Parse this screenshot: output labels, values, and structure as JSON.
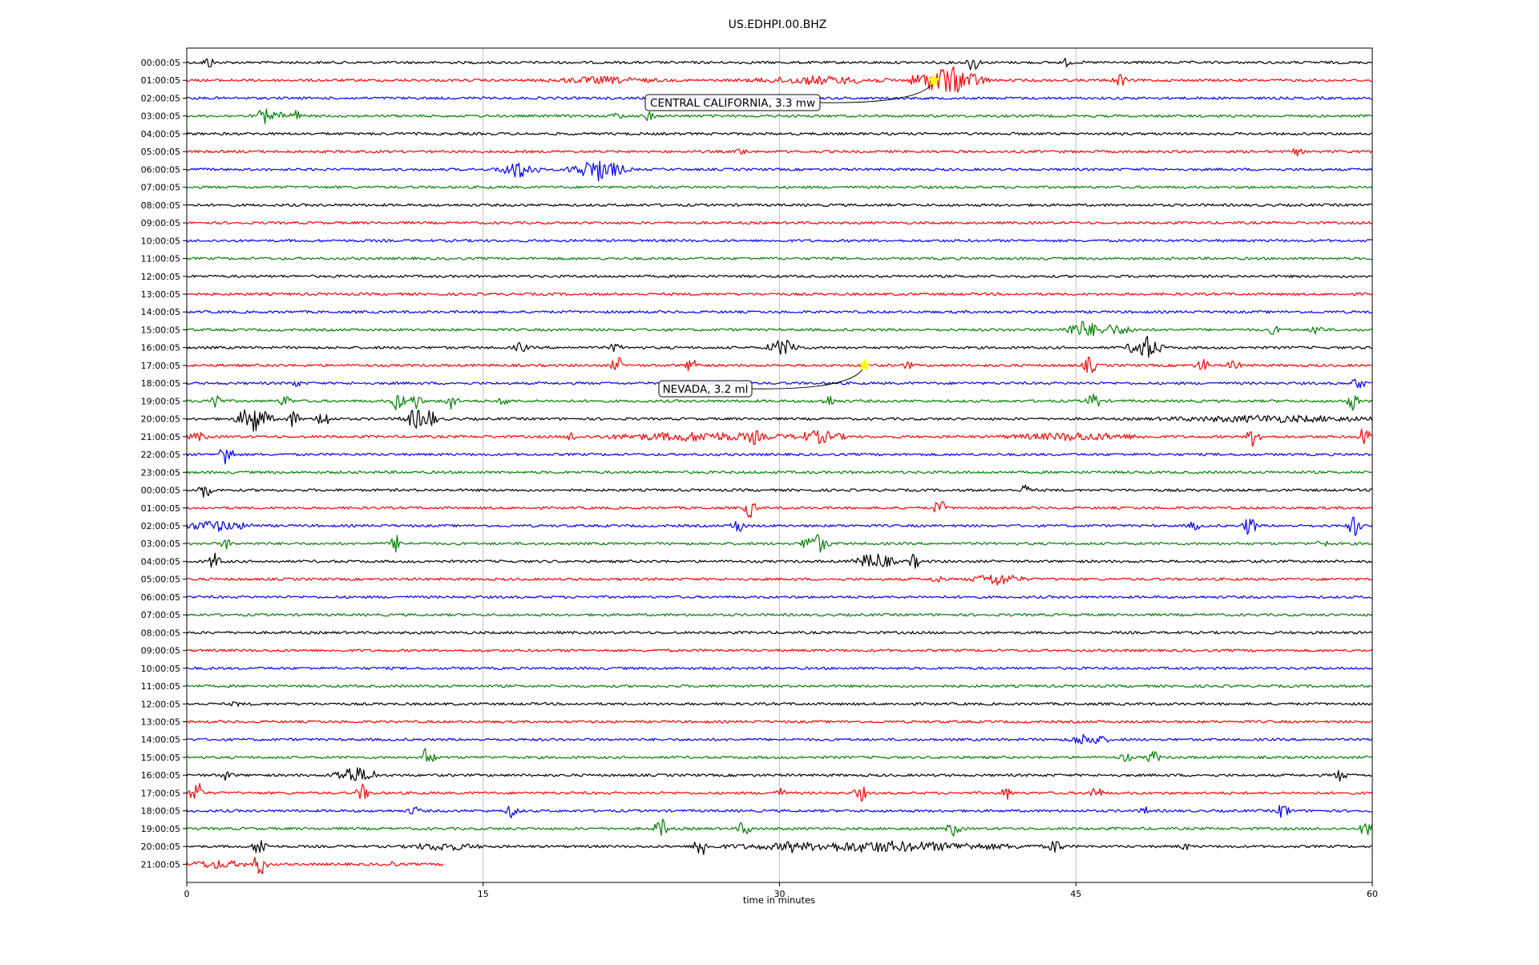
{
  "chart_data": {
    "type": "line",
    "title": "US.EDHPI.00.BHZ",
    "xlabel": "time in minutes",
    "ylabel": "",
    "xlim": [
      0,
      60
    ],
    "x_ticks": [
      0,
      15,
      30,
      45,
      60
    ],
    "grid": "vertical",
    "series_colors": [
      "#000000",
      "#ff0000",
      "#0000ff",
      "#008000"
    ],
    "row_labels": [
      "00:00:05",
      "01:00:05",
      "02:00:05",
      "03:00:05",
      "04:00:05",
      "05:00:05",
      "06:00:05",
      "07:00:05",
      "08:00:05",
      "09:00:05",
      "10:00:05",
      "11:00:05",
      "12:00:05",
      "13:00:05",
      "14:00:05",
      "15:00:05",
      "16:00:05",
      "17:00:05",
      "18:00:05",
      "19:00:05",
      "20:00:05",
      "21:00:05",
      "22:00:05",
      "23:00:05",
      "00:00:05",
      "01:00:05",
      "02:00:05",
      "03:00:05",
      "04:00:05",
      "05:00:05",
      "06:00:05",
      "07:00:05",
      "08:00:05",
      "09:00:05",
      "10:00:05",
      "11:00:05",
      "12:00:05",
      "13:00:05",
      "14:00:05",
      "15:00:05",
      "16:00:05",
      "17:00:05",
      "18:00:05",
      "19:00:05",
      "20:00:05",
      "21:00:05"
    ],
    "last_row_end_minute": 13,
    "events": [
      {
        "label": "CENTRAL CALIFORNIA, 3.3 mw",
        "row": 1,
        "minute": 37.8
      },
      {
        "label": "NEVADA, 3.2 ml",
        "row": 17,
        "minute": 34.3
      }
    ],
    "bursts": [
      {
        "row": 0,
        "minute": 1.1,
        "amp": 0.6
      },
      {
        "row": 0,
        "minute": 39.8,
        "amp": 0.9
      },
      {
        "row": 0,
        "minute": 44.5,
        "amp": 0.4
      },
      {
        "row": 1,
        "minute": 21,
        "amp": 0.35,
        "width": 5
      },
      {
        "row": 1,
        "minute": 32,
        "amp": 0.4,
        "width": 6
      },
      {
        "row": 1,
        "minute": 38.5,
        "amp": 1.3,
        "width": 2.5
      },
      {
        "row": 1,
        "minute": 47.2,
        "amp": 0.7
      },
      {
        "row": 3,
        "minute": 3.9,
        "amp": 0.8
      },
      {
        "row": 3,
        "minute": 4.6,
        "amp": 0.5
      },
      {
        "row": 3,
        "minute": 5.5,
        "amp": 0.6
      },
      {
        "row": 3,
        "minute": 21.8,
        "amp": 0.4
      },
      {
        "row": 3,
        "minute": 23.4,
        "amp": 0.5
      },
      {
        "row": 5,
        "minute": 28.1,
        "amp": 0.4
      },
      {
        "row": 5,
        "minute": 56.2,
        "amp": 0.4
      },
      {
        "row": 6,
        "minute": 16.8,
        "amp": 0.8,
        "width": 1.5
      },
      {
        "row": 6,
        "minute": 20.8,
        "amp": 1.0,
        "width": 2
      },
      {
        "row": 15,
        "minute": 45.4,
        "amp": 0.8,
        "width": 1.5
      },
      {
        "row": 15,
        "minute": 46.8,
        "amp": 0.5,
        "width": 2
      },
      {
        "row": 15,
        "minute": 55,
        "amp": 0.5
      },
      {
        "row": 15,
        "minute": 57.2,
        "amp": 0.6
      },
      {
        "row": 16,
        "minute": 16.9,
        "amp": 0.6
      },
      {
        "row": 16,
        "minute": 21.7,
        "amp": 0.5
      },
      {
        "row": 16,
        "minute": 30.2,
        "amp": 0.8,
        "width": 1.2
      },
      {
        "row": 16,
        "minute": 48.5,
        "amp": 1.1,
        "width": 1.2
      },
      {
        "row": 17,
        "minute": 21.8,
        "amp": 0.8
      },
      {
        "row": 17,
        "minute": 25.6,
        "amp": 0.8
      },
      {
        "row": 17,
        "minute": 36.5,
        "amp": 0.4
      },
      {
        "row": 17,
        "minute": 45.7,
        "amp": 0.9
      },
      {
        "row": 17,
        "minute": 51.4,
        "amp": 0.7
      },
      {
        "row": 17,
        "minute": 53,
        "amp": 0.6
      },
      {
        "row": 18,
        "minute": 5.5,
        "amp": 0.4
      },
      {
        "row": 18,
        "minute": 59.3,
        "amp": 0.7
      },
      {
        "row": 19,
        "minute": 1.4,
        "amp": 1.0
      },
      {
        "row": 19,
        "minute": 5,
        "amp": 0.6
      },
      {
        "row": 19,
        "minute": 10.7,
        "amp": 1.0
      },
      {
        "row": 19,
        "minute": 11.6,
        "amp": 0.8
      },
      {
        "row": 19,
        "minute": 13.4,
        "amp": 0.8
      },
      {
        "row": 19,
        "minute": 16.1,
        "amp": 0.5
      },
      {
        "row": 19,
        "minute": 32.5,
        "amp": 0.6
      },
      {
        "row": 19,
        "minute": 45.9,
        "amp": 0.9
      },
      {
        "row": 19,
        "minute": 59,
        "amp": 0.8
      },
      {
        "row": 20,
        "minute": 3.4,
        "amp": 1.3,
        "width": 1.2
      },
      {
        "row": 20,
        "minute": 5.4,
        "amp": 0.8
      },
      {
        "row": 20,
        "minute": 6.9,
        "amp": 1.0
      },
      {
        "row": 20,
        "minute": 11.6,
        "amp": 0.9,
        "width": 1
      },
      {
        "row": 20,
        "minute": 12.3,
        "amp": 1.0
      },
      {
        "row": 20,
        "minute": 55,
        "amp": 0.35,
        "width": 10
      },
      {
        "row": 21,
        "minute": 0.6,
        "amp": 0.4,
        "width": 1
      },
      {
        "row": 21,
        "minute": 19.5,
        "amp": 0.5
      },
      {
        "row": 21,
        "minute": 26,
        "amp": 0.45,
        "width": 8
      },
      {
        "row": 21,
        "minute": 28.7,
        "amp": 0.8
      },
      {
        "row": 21,
        "minute": 32,
        "amp": 0.6,
        "width": 2
      },
      {
        "row": 21,
        "minute": 45,
        "amp": 0.4,
        "width": 6
      },
      {
        "row": 21,
        "minute": 54,
        "amp": 1.0
      },
      {
        "row": 21,
        "minute": 59.6,
        "amp": 1.0
      },
      {
        "row": 22,
        "minute": 2,
        "amp": 1.3
      },
      {
        "row": 24,
        "minute": 0.9,
        "amp": 0.8
      },
      {
        "row": 24,
        "minute": 42.5,
        "amp": 0.6
      },
      {
        "row": 25,
        "minute": 28.5,
        "amp": 0.9
      },
      {
        "row": 25,
        "minute": 38.1,
        "amp": 0.8
      },
      {
        "row": 26,
        "minute": 1.5,
        "amp": 0.5,
        "width": 3
      },
      {
        "row": 26,
        "minute": 27.9,
        "amp": 0.8
      },
      {
        "row": 26,
        "minute": 53.8,
        "amp": 1.0
      },
      {
        "row": 26,
        "minute": 59.1,
        "amp": 1.0
      },
      {
        "row": 26,
        "minute": 51,
        "amp": 0.5
      },
      {
        "row": 27,
        "minute": 2,
        "amp": 0.5
      },
      {
        "row": 27,
        "minute": 10.6,
        "amp": 0.8
      },
      {
        "row": 27,
        "minute": 31.8,
        "amp": 1.0,
        "width": 1
      },
      {
        "row": 27,
        "minute": 57.5,
        "amp": 0.4
      },
      {
        "row": 28,
        "minute": 1.4,
        "amp": 0.8
      },
      {
        "row": 28,
        "minute": 34.8,
        "amp": 0.8,
        "width": 1.5
      },
      {
        "row": 28,
        "minute": 36.8,
        "amp": 0.7
      },
      {
        "row": 29,
        "minute": 38,
        "amp": 0.5
      },
      {
        "row": 29,
        "minute": 41,
        "amp": 0.6,
        "width": 2
      },
      {
        "row": 36,
        "minute": 2.5,
        "amp": 0.3
      },
      {
        "row": 38,
        "minute": 45.6,
        "amp": 0.6,
        "width": 1.5
      },
      {
        "row": 39,
        "minute": 12.2,
        "amp": 1.1
      },
      {
        "row": 39,
        "minute": 47.5,
        "amp": 0.5
      },
      {
        "row": 39,
        "minute": 48.9,
        "amp": 0.7
      },
      {
        "row": 40,
        "minute": 2,
        "amp": 0.5
      },
      {
        "row": 40,
        "minute": 8.4,
        "amp": 0.8,
        "width": 1.5
      },
      {
        "row": 40,
        "minute": 9.3,
        "amp": 0.7
      },
      {
        "row": 40,
        "minute": 58.4,
        "amp": 0.6
      },
      {
        "row": 41,
        "minute": 0.5,
        "amp": 1.2
      },
      {
        "row": 41,
        "minute": 8.9,
        "amp": 0.8
      },
      {
        "row": 41,
        "minute": 30,
        "amp": 0.5
      },
      {
        "row": 41,
        "minute": 34.1,
        "amp": 0.8
      },
      {
        "row": 41,
        "minute": 41.5,
        "amp": 0.6
      },
      {
        "row": 41,
        "minute": 46,
        "amp": 0.7
      },
      {
        "row": 42,
        "minute": 11.5,
        "amp": 0.5
      },
      {
        "row": 42,
        "minute": 16.5,
        "amp": 0.7
      },
      {
        "row": 42,
        "minute": 48.5,
        "amp": 0.4
      },
      {
        "row": 42,
        "minute": 55.5,
        "amp": 0.8
      },
      {
        "row": 43,
        "minute": 24,
        "amp": 1.0
      },
      {
        "row": 43,
        "minute": 28.2,
        "amp": 0.8
      },
      {
        "row": 43,
        "minute": 38.8,
        "amp": 0.8
      },
      {
        "row": 43,
        "minute": 59.7,
        "amp": 0.8
      },
      {
        "row": 44,
        "minute": 3.7,
        "amp": 1.0
      },
      {
        "row": 44,
        "minute": 13,
        "amp": 0.4,
        "width": 3
      },
      {
        "row": 44,
        "minute": 26,
        "amp": 1.2
      },
      {
        "row": 44,
        "minute": 30.5,
        "amp": 0.8
      },
      {
        "row": 44,
        "minute": 35,
        "amp": 0.5,
        "width": 12
      },
      {
        "row": 44,
        "minute": 44,
        "amp": 0.8
      },
      {
        "row": 44,
        "minute": 50.5,
        "amp": 0.4
      },
      {
        "row": 45,
        "minute": 1.5,
        "amp": 0.4,
        "width": 3
      },
      {
        "row": 45,
        "minute": 3.7,
        "amp": 1.2
      },
      {
        "row": 45,
        "minute": 10.3,
        "amp": 0.4
      }
    ]
  }
}
